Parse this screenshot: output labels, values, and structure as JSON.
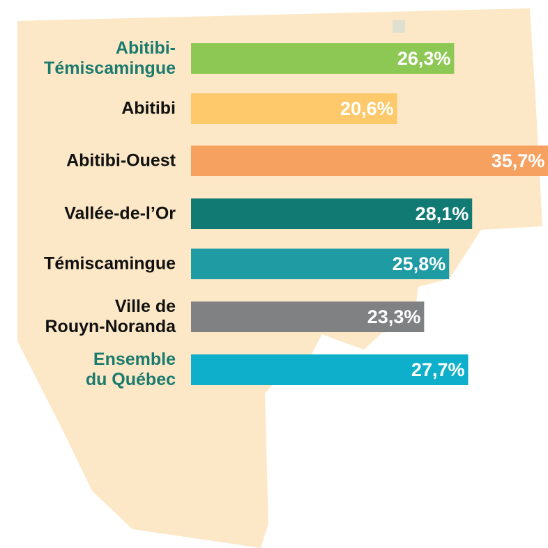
{
  "chart_data": {
    "type": "bar",
    "categories": [
      "Abitibi-\nTémiscamingue",
      "Abitibi",
      "Abitibi-Ouest",
      "Vallée-de-l’Or",
      "Témiscamingue",
      "Ville de\nRouyn-Noranda",
      "Ensemble\ndu Québec"
    ],
    "values": [
      26.3,
      20.6,
      35.7,
      28.1,
      25.8,
      23.3,
      27.7
    ],
    "value_labels": [
      "26,3%",
      "20,6%",
      "35,7%",
      "28,1%",
      "25,8%",
      "23,3%",
      "27,7%"
    ],
    "colors": [
      "#8dc854",
      "#fdc96b",
      "#f7a160",
      "#117a73",
      "#1f9ba3",
      "#7f8183",
      "#0eafca"
    ],
    "label_colors": [
      "#1a7a6e",
      "#111111",
      "#111111",
      "#111111",
      "#111111",
      "#111111",
      "#1a7a6e"
    ]
  }
}
